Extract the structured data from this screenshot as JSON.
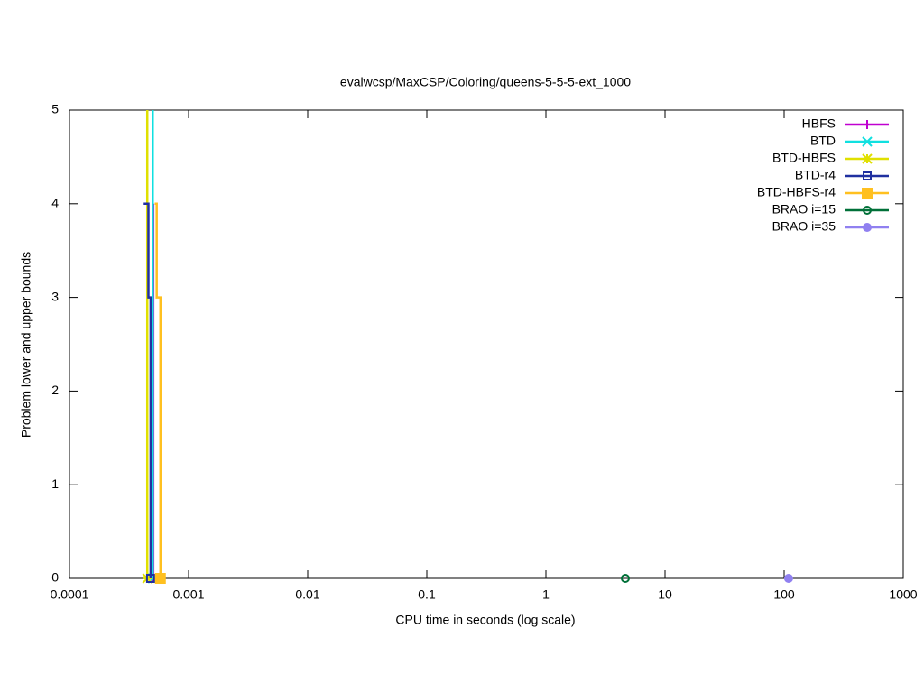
{
  "chart_data": {
    "type": "step",
    "title": "evalwcsp/MaxCSP/Coloring/queens-5-5-5-ext_1000",
    "x_label": "CPU time in seconds (log scale)",
    "y_label": "Problem lower and upper bounds",
    "xscale": "log",
    "xlim": [
      0.0001,
      1000
    ],
    "xticks": [
      0.0001,
      0.001,
      0.01,
      0.1,
      1,
      10,
      100,
      1000
    ],
    "ylim": [
      0,
      5
    ],
    "yticks": [
      0,
      1,
      2,
      3,
      4,
      5
    ],
    "legend": "top-right",
    "series": [
      {
        "name": "HBFS",
        "color": "#c000d0",
        "marker": "plus",
        "x": [
          0.000505,
          0.000505
        ],
        "values": [
          4,
          0
        ]
      },
      {
        "name": "BTD",
        "color": "#10e0e0",
        "marker": "cross",
        "x": [
          0.0005,
          0.0005
        ],
        "values": [
          5,
          0
        ]
      },
      {
        "name": "BTD-HBFS",
        "color": "#e0e000",
        "marker": "star",
        "x": [
          0.00045,
          0.00045
        ],
        "values": [
          5,
          0
        ]
      },
      {
        "name": "BTD-r4",
        "color": "#2030a0",
        "marker": "open-square",
        "x": [
          0.00042,
          0.00046,
          0.00048
        ],
        "values": [
          4,
          3,
          0
        ]
      },
      {
        "name": "BTD-HBFS-r4",
        "color": "#ffc020",
        "marker": "filled-square",
        "x": [
          0.00052,
          0.00054,
          0.00058
        ],
        "values": [
          4,
          3,
          0
        ]
      },
      {
        "name": "BRAO i=15",
        "color": "#007038",
        "marker": "open-circle",
        "x": [
          4.64
        ],
        "values": [
          0
        ]
      },
      {
        "name": "BRAO i=35",
        "color": "#9080f0",
        "marker": "filled-circle",
        "x": [
          109
        ],
        "values": [
          0
        ]
      }
    ]
  }
}
